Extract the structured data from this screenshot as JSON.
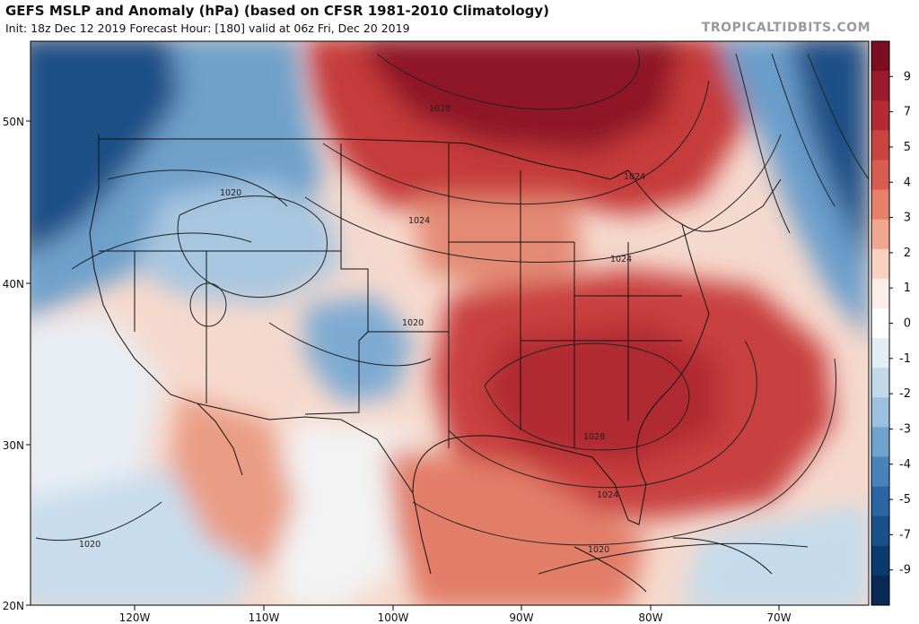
{
  "header": {
    "title": "GEFS MSLP and Anomaly (hPa) (based on CFSR 1981-2010 Climatology)",
    "subtitle": "Init: 18z Dec 12 2019   Forecast Hour: [180]   valid at 06z Fri, Dec 20 2019",
    "credit": "TROPICALTIDBITS.COM"
  },
  "map": {
    "lat_labels": [
      "50N",
      "40N",
      "30N",
      "20N"
    ],
    "lon_labels": [
      "120W",
      "110W",
      "100W",
      "90W",
      "80W",
      "70W"
    ],
    "isobar_labels": [
      "1028",
      "1024",
      "1020",
      "1020",
      "1024",
      "1024",
      "1028",
      "1024",
      "1020",
      "1020"
    ]
  },
  "colorbar": {
    "labels": [
      "9",
      "7",
      "5",
      "4",
      "3",
      "2",
      "1",
      "0",
      "-1",
      "-2",
      "-3",
      "-4",
      "-5",
      "-7",
      "-9"
    ],
    "colors": [
      "#7a0d1f",
      "#9a1b2b",
      "#b52b35",
      "#c9433f",
      "#d85c4f",
      "#e6806a",
      "#f0a78e",
      "#f8d2c1",
      "#fbeee8",
      "#ffffff",
      "#e2edf5",
      "#c3d9ea",
      "#9cc1de",
      "#6fa3cd",
      "#4784ba",
      "#2a66a3",
      "#17508a",
      "#0b3a6e",
      "#082a55"
    ]
  }
}
